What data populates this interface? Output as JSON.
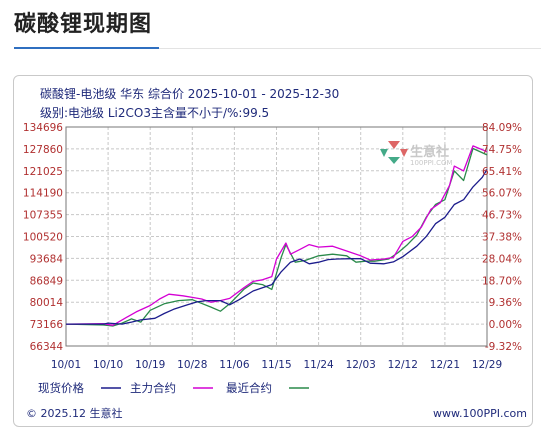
{
  "page": {
    "title": "碳酸锂现期图"
  },
  "chart_data": {
    "type": "line",
    "title": "碳酸锂-电池级 华东 综合价 2025-10-01 - 2025-12-30",
    "subtitle": "级别:电池级 Li2CO3主含量不小于/%:99.5",
    "x_tick_labels": [
      "10/01",
      "10/10",
      "10/19",
      "10/28",
      "11/06",
      "11/15",
      "11/24",
      "12/03",
      "12/12",
      "12/21",
      "12/29"
    ],
    "y_left_ticks": [
      "134696",
      "127860",
      "121025",
      "114190",
      "107355",
      "100520",
      "93684",
      "86849",
      "80014",
      "73166",
      "66344"
    ],
    "y_right_ticks": [
      "84.09%",
      "74.75%",
      "65.41%",
      "56.07%",
      "46.73%",
      "37.38%",
      "28.04%",
      "18.70%",
      "9.36%",
      "0.00%",
      "-9.32%"
    ],
    "ylim_left": [
      66344,
      134696
    ],
    "ylim_right": [
      -9.32,
      84.09
    ],
    "grid": true,
    "legend_position": "bottom",
    "series": [
      {
        "name": "现货价格",
        "color": "#1c1c8c",
        "points": [
          [
            "2025-10-01",
            73166
          ],
          [
            "2025-10-09",
            73166
          ],
          [
            "2025-10-10",
            73500
          ],
          [
            "2025-10-13",
            73166
          ],
          [
            "2025-10-15",
            73800
          ],
          [
            "2025-10-17",
            74500
          ],
          [
            "2025-10-20",
            75000
          ],
          [
            "2025-10-22",
            76500
          ],
          [
            "2025-10-24",
            77800
          ],
          [
            "2025-10-27",
            79200
          ],
          [
            "2025-10-29",
            80100
          ],
          [
            "2025-10-31",
            80500
          ],
          [
            "2025-11-03",
            80500
          ],
          [
            "2025-11-05",
            79200
          ],
          [
            "2025-11-07",
            80800
          ],
          [
            "2025-11-10",
            83500
          ],
          [
            "2025-11-12",
            84500
          ],
          [
            "2025-11-14",
            85500
          ],
          [
            "2025-11-16",
            89500
          ],
          [
            "2025-11-18",
            92500
          ],
          [
            "2025-11-20",
            93500
          ],
          [
            "2025-11-22",
            92000
          ],
          [
            "2025-11-24",
            92500
          ],
          [
            "2025-11-26",
            93300
          ],
          [
            "2025-11-28",
            93500
          ],
          [
            "2025-12-01",
            93600
          ],
          [
            "2025-12-03",
            93600
          ],
          [
            "2025-12-05",
            92200
          ],
          [
            "2025-12-08",
            92000
          ],
          [
            "2025-12-10",
            92600
          ],
          [
            "2025-12-12",
            94200
          ],
          [
            "2025-12-15",
            97500
          ],
          [
            "2025-12-17",
            100500
          ],
          [
            "2025-12-19",
            104500
          ],
          [
            "2025-12-21",
            106500
          ],
          [
            "2025-12-23",
            110500
          ],
          [
            "2025-12-25",
            112000
          ],
          [
            "2025-12-27",
            116000
          ],
          [
            "2025-12-29",
            119000
          ],
          [
            "2025-12-30",
            121500
          ]
        ]
      },
      {
        "name": "主力合约",
        "color": "#d400d4",
        "points": [
          [
            "2025-10-01",
            73166
          ],
          [
            "2025-10-09",
            73300
          ],
          [
            "2025-10-11",
            72800
          ],
          [
            "2025-10-13",
            74500
          ],
          [
            "2025-10-16",
            77000
          ],
          [
            "2025-10-19",
            79000
          ],
          [
            "2025-10-21",
            81000
          ],
          [
            "2025-10-23",
            82500
          ],
          [
            "2025-10-26",
            82000
          ],
          [
            "2025-10-28",
            81500
          ],
          [
            "2025-10-30",
            81000
          ],
          [
            "2025-11-01",
            80000
          ],
          [
            "2025-11-03",
            80500
          ],
          [
            "2025-11-05",
            81200
          ],
          [
            "2025-11-08",
            84500
          ],
          [
            "2025-11-10",
            86500
          ],
          [
            "2025-11-12",
            87000
          ],
          [
            "2025-11-14",
            88000
          ],
          [
            "2025-11-15",
            93500
          ],
          [
            "2025-11-17",
            98500
          ],
          [
            "2025-11-18",
            95000
          ],
          [
            "2025-11-20",
            96500
          ],
          [
            "2025-11-22",
            98000
          ],
          [
            "2025-11-24",
            97200
          ],
          [
            "2025-11-27",
            97500
          ],
          [
            "2025-11-30",
            96000
          ],
          [
            "2025-12-03",
            94500
          ],
          [
            "2025-12-05",
            93200
          ],
          [
            "2025-12-08",
            93500
          ],
          [
            "2025-12-10",
            94000
          ],
          [
            "2025-12-12",
            99000
          ],
          [
            "2025-12-14",
            100500
          ],
          [
            "2025-12-16",
            103500
          ],
          [
            "2025-12-18",
            109000
          ],
          [
            "2025-12-20",
            111000
          ],
          [
            "2025-12-22",
            116500
          ],
          [
            "2025-12-23",
            122500
          ],
          [
            "2025-12-25",
            121000
          ],
          [
            "2025-12-27",
            128800
          ],
          [
            "2025-12-30",
            127000
          ]
        ]
      },
      {
        "name": "最近合约",
        "color": "#2a8a4a",
        "points": [
          [
            "2025-10-01",
            73166
          ],
          [
            "2025-10-09",
            72900
          ],
          [
            "2025-10-11",
            72600
          ],
          [
            "2025-10-13",
            73500
          ],
          [
            "2025-10-15",
            74800
          ],
          [
            "2025-10-17",
            73800
          ],
          [
            "2025-10-19",
            77500
          ],
          [
            "2025-10-22",
            79500
          ],
          [
            "2025-10-25",
            80500
          ],
          [
            "2025-10-28",
            80800
          ],
          [
            "2025-11-01",
            78500
          ],
          [
            "2025-11-03",
            77200
          ],
          [
            "2025-11-05",
            79500
          ],
          [
            "2025-11-08",
            84000
          ],
          [
            "2025-11-10",
            86000
          ],
          [
            "2025-11-12",
            85500
          ],
          [
            "2025-11-14",
            84000
          ],
          [
            "2025-11-16",
            94000
          ],
          [
            "2025-11-17",
            98000
          ],
          [
            "2025-11-19",
            92500
          ],
          [
            "2025-11-21",
            93000
          ],
          [
            "2025-11-24",
            94500
          ],
          [
            "2025-11-27",
            95000
          ],
          [
            "2025-11-30",
            94500
          ],
          [
            "2025-12-02",
            92500
          ],
          [
            "2025-12-04",
            92800
          ],
          [
            "2025-12-06",
            92800
          ],
          [
            "2025-12-09",
            93500
          ],
          [
            "2025-12-11",
            95500
          ],
          [
            "2025-12-13",
            98000
          ],
          [
            "2025-12-15",
            101000
          ],
          [
            "2025-12-17",
            106500
          ],
          [
            "2025-12-19",
            110500
          ],
          [
            "2025-12-21",
            112000
          ],
          [
            "2025-12-23",
            121000
          ],
          [
            "2025-12-25",
            118000
          ],
          [
            "2025-12-27",
            128000
          ],
          [
            "2025-12-30",
            126000
          ]
        ]
      }
    ]
  },
  "legend": [
    {
      "label": "现货价格",
      "color": "#1c1c8c"
    },
    {
      "label": "主力合约",
      "color": "#d400d4"
    },
    {
      "label": "最近合约",
      "color": "#2a8a4a"
    }
  ],
  "watermark": {
    "logo_text": "生意社",
    "logo_sub": "100PPI.COM"
  },
  "footer": {
    "left": "© 2025.12 生意社",
    "right": "www.100PPI.com"
  }
}
